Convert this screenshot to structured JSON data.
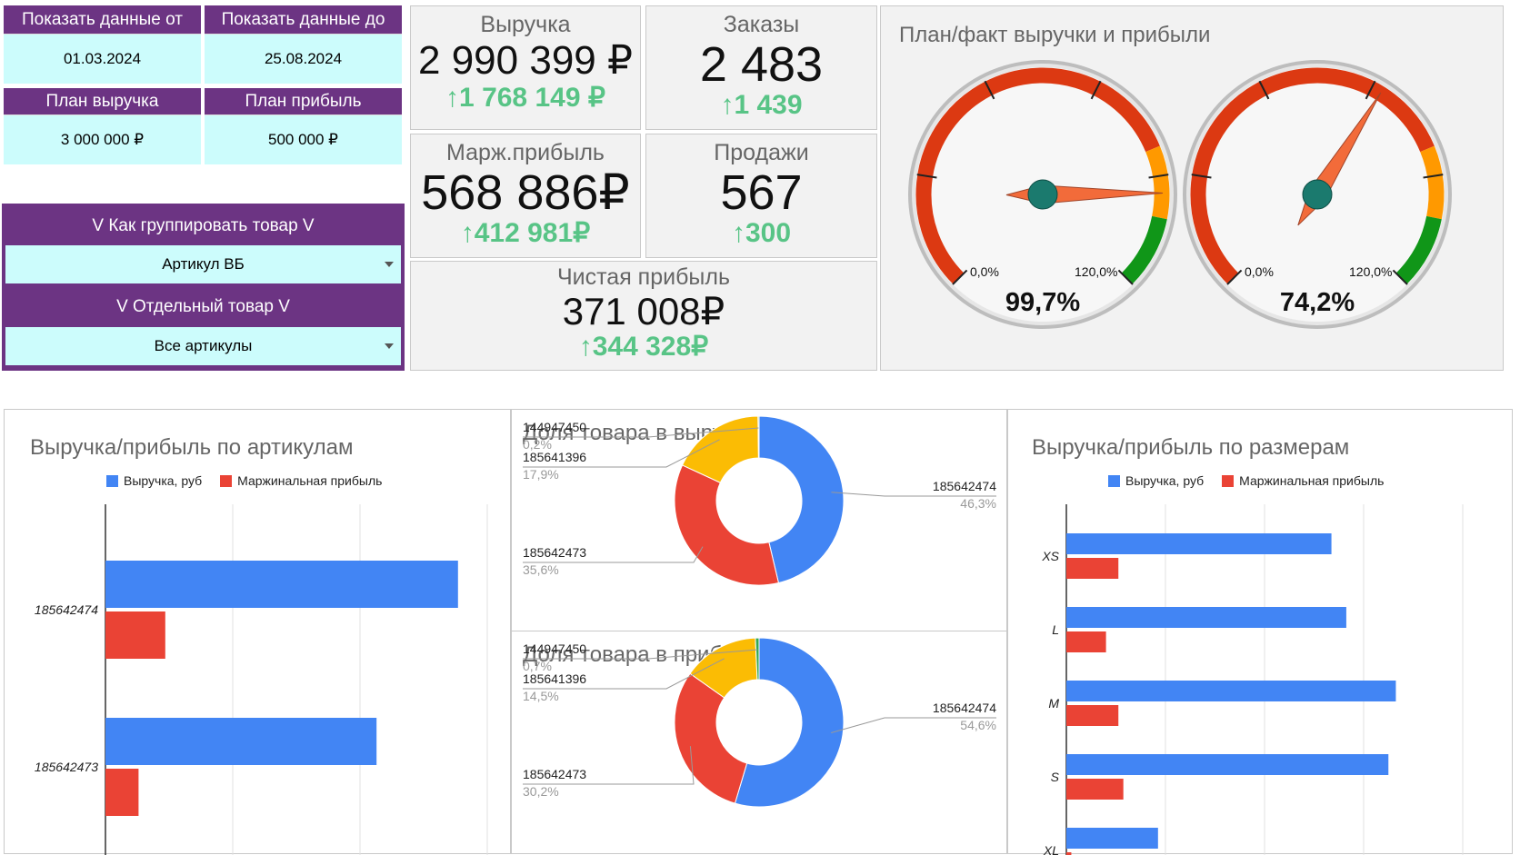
{
  "filters": {
    "from_label": "Показать данные от",
    "from_value": "01.03.2024",
    "to_label": "Показать данные до",
    "to_value": "25.08.2024",
    "plan_revenue_label": "План выручка",
    "plan_revenue_value": "3 000 000 ₽",
    "plan_profit_label": "План прибыль",
    "plan_profit_value": "500 000 ₽",
    "group_label": "V Как группировать товар V",
    "group_value": "Артикул ВБ",
    "item_label": "V Отдельный товар V",
    "item_value": "Все артикулы"
  },
  "kpis": {
    "revenue": {
      "title": "Выручка",
      "value": "2 990 399 ₽",
      "delta": "1 768 149 ₽"
    },
    "orders": {
      "title": "Заказы",
      "value": "2 483",
      "delta": "1 439"
    },
    "margin": {
      "title": "Марж.прибыль",
      "value": "568 886₽",
      "delta": "412 981₽"
    },
    "sales": {
      "title": "Продажи",
      "value": "567",
      "delta": "300"
    },
    "net": {
      "title": "Чистая прибыль",
      "value": "371 008₽",
      "delta": "344 328₽"
    },
    "up_arrow": "↑"
  },
  "gauges": {
    "title": "План/факт выручки и прибыли",
    "min_label": "0,0%",
    "max_label": "120,0%",
    "items": [
      {
        "value": 99.7,
        "label": "99,7%"
      },
      {
        "value": 74.2,
        "label": "74,2%"
      }
    ],
    "colors": {
      "red": "#dc3912",
      "orange": "#ff9900",
      "green": "#109618",
      "hub": "#1b7a6e",
      "needle": "#f26b3a"
    }
  },
  "chart_data": [
    {
      "type": "bar",
      "title": "Выручка/прибыль по артикулам",
      "orientation": "horizontal",
      "categories": [
        "185642474",
        "185642473"
      ],
      "series": [
        {
          "name": "Выручка, руб",
          "color": "#4285f4",
          "values": [
            1385000,
            1065000
          ]
        },
        {
          "name": "Маржинальная прибыль",
          "color": "#ea4335",
          "values": [
            235000,
            130000
          ]
        }
      ],
      "xlim": [
        0,
        1500000
      ],
      "grid": true,
      "legend": "top"
    },
    {
      "type": "pie",
      "title": "Доля товара в выручке",
      "donut": true,
      "slices": [
        {
          "label": "185642474",
          "value": 46.3,
          "pct": "46,3%",
          "color": "#4285f4"
        },
        {
          "label": "185642473",
          "value": 35.6,
          "pct": "35,6%",
          "color": "#ea4335"
        },
        {
          "label": "185641396",
          "value": 17.9,
          "pct": "17,9%",
          "color": "#fbbc04"
        },
        {
          "label": "144947450",
          "value": 0.2,
          "pct": "0,2%",
          "color": "#34a853"
        }
      ]
    },
    {
      "type": "pie",
      "title": "Доля товара в прибыли",
      "donut": true,
      "slices": [
        {
          "label": "185642474",
          "value": 54.6,
          "pct": "54,6%",
          "color": "#4285f4"
        },
        {
          "label": "185642473",
          "value": 30.2,
          "pct": "30,2%",
          "color": "#ea4335"
        },
        {
          "label": "185641396",
          "value": 14.5,
          "pct": "14,5%",
          "color": "#fbbc04"
        },
        {
          "label": "144947450",
          "value": 0.7,
          "pct": "0,7%",
          "color": "#34a853"
        }
      ]
    },
    {
      "type": "bar",
      "title": "Выручка/прибыль по размерам",
      "orientation": "horizontal",
      "categories": [
        "XS",
        "L",
        "M",
        "S",
        "XL"
      ],
      "series": [
        {
          "name": "Выручка, руб",
          "color": "#4285f4",
          "values": [
            535000,
            565000,
            665000,
            650000,
            185000
          ]
        },
        {
          "name": "Маржинальная прибыль",
          "color": "#ea4335",
          "values": [
            105000,
            80000,
            105000,
            115000,
            10000
          ]
        }
      ],
      "xlim": [
        0,
        800000
      ],
      "grid": true,
      "legend": "top"
    }
  ]
}
